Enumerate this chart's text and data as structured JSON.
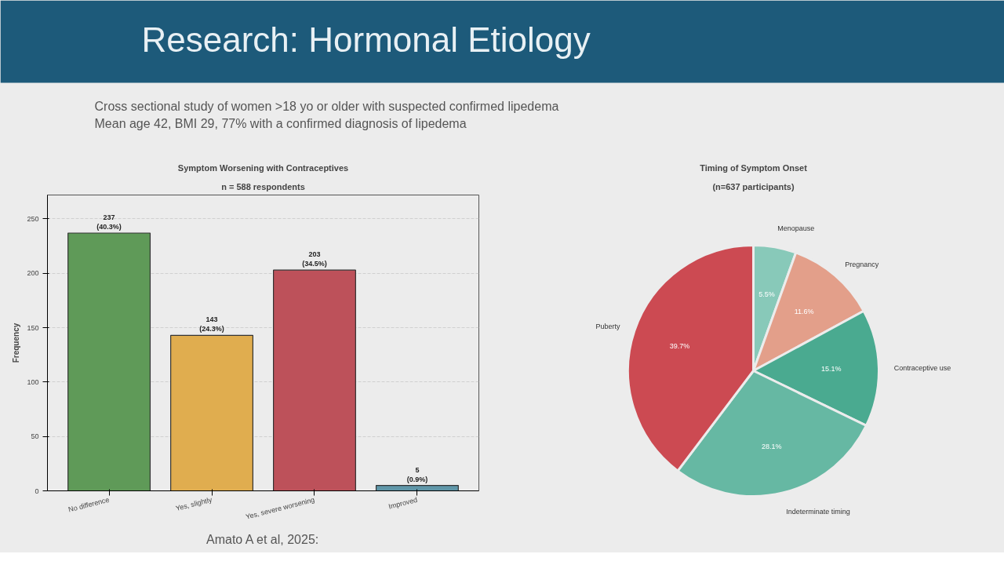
{
  "chart_data": [
    {
      "type": "other",
      "title": "Research: Hormonal Etiology",
      "annotations": [
        "Cross sectional study of women >18 yo or older with suspected confirmed lipedema",
        "Mean age 42, BMI 29, 77% with a confirmed diagnosis of lipedema"
      ]
    },
    {
      "type": "bar",
      "title": "Symptom Worsening with Contraceptives",
      "subtitle": "n = 588 respondents",
      "ylabel": "Frequency",
      "categories": [
        "No difference",
        "Yes, slightly",
        "Yes, severe worsening",
        "Improved"
      ],
      "values": [
        237,
        143,
        203,
        5
      ],
      "colors": [
        "#5f9a58",
        "#e0ad4f",
        "#bd515a",
        "#5f96a8"
      ],
      "value_labels": [
        "237\n(40.3%)",
        "143\n(24.3%)",
        "203\n(34.5%)",
        "5\n(0.9%)"
      ],
      "ylim": [
        0,
        272
      ],
      "yticks": [
        0,
        50,
        100,
        150,
        200,
        250
      ],
      "grid": "y",
      "annotations": [
        "Amato A et al, 2025:"
      ]
    },
    {
      "type": "pie",
      "title": "Timing of Symptom Onset",
      "subtitle": "(n=637 participants)",
      "categories": [
        "Menopause",
        "Pregnancy",
        "Contraceptive use",
        "Indeterminate timing",
        "Puberty"
      ],
      "values": [
        5.5,
        11.6,
        15.1,
        28.1,
        39.7
      ],
      "colors": [
        "#88c9b9",
        "#e39f8a",
        "#4aaa90",
        "#66b8a3",
        "#cc4a52"
      ],
      "value_labels": [
        "5.5%",
        "11.6%",
        "15.1%",
        "28.1%",
        "39.7%"
      ]
    }
  ]
}
